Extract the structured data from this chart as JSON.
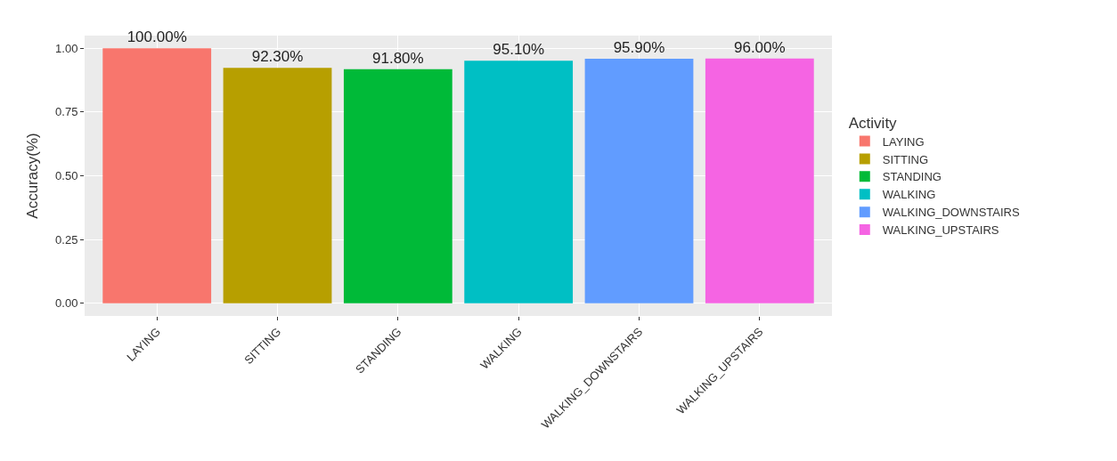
{
  "chart_data": {
    "type": "bar",
    "ylabel": "Accuracy(%)",
    "legend_title": "Activity",
    "categories": [
      "LAYING",
      "SITTING",
      "STANDING",
      "WALKING",
      "WALKING_DOWNSTAIRS",
      "WALKING_UPSTAIRS"
    ],
    "series": [
      {
        "name": "LAYING",
        "color": "#f8766d",
        "values": [
          1.0,
          null,
          null,
          null,
          null,
          null
        ],
        "value_labels": [
          "100.00%",
          null,
          null,
          null,
          null,
          null
        ]
      },
      {
        "name": "SITTING",
        "color": "#b79f00",
        "values": [
          null,
          0.923,
          null,
          null,
          null,
          null
        ],
        "value_labels": [
          null,
          "92.30%",
          null,
          null,
          null,
          null
        ]
      },
      {
        "name": "STANDING",
        "color": "#00ba38",
        "values": [
          null,
          null,
          0.918,
          null,
          null,
          null
        ],
        "value_labels": [
          null,
          null,
          "91.80%",
          null,
          null,
          null
        ]
      },
      {
        "name": "WALKING",
        "color": "#00bfc4",
        "values": [
          null,
          null,
          null,
          0.951,
          null,
          null
        ],
        "value_labels": [
          null,
          null,
          null,
          "95.10%",
          null,
          null
        ]
      },
      {
        "name": "WALKING_DOWNSTAIRS",
        "color": "#619cff",
        "values": [
          null,
          null,
          null,
          null,
          0.959,
          null
        ],
        "value_labels": [
          null,
          null,
          null,
          null,
          "95.90%",
          null
        ]
      },
      {
        "name": "WALKING_UPSTAIRS",
        "color": "#f564e3",
        "values": [
          null,
          null,
          null,
          null,
          null,
          0.96
        ],
        "value_labels": [
          null,
          null,
          null,
          null,
          null,
          "96.00%"
        ]
      }
    ],
    "ylim": [
      -0.05,
      1.05
    ],
    "yticks": [
      {
        "value": 0,
        "label": "0.00"
      },
      {
        "value": 0.25,
        "label": "0.25"
      },
      {
        "value": 0.5,
        "label": "0.50"
      },
      {
        "value": 0.75,
        "label": "0.75"
      },
      {
        "value": 1.0,
        "label": "1.00"
      }
    ],
    "grid": true,
    "legend": "right"
  }
}
